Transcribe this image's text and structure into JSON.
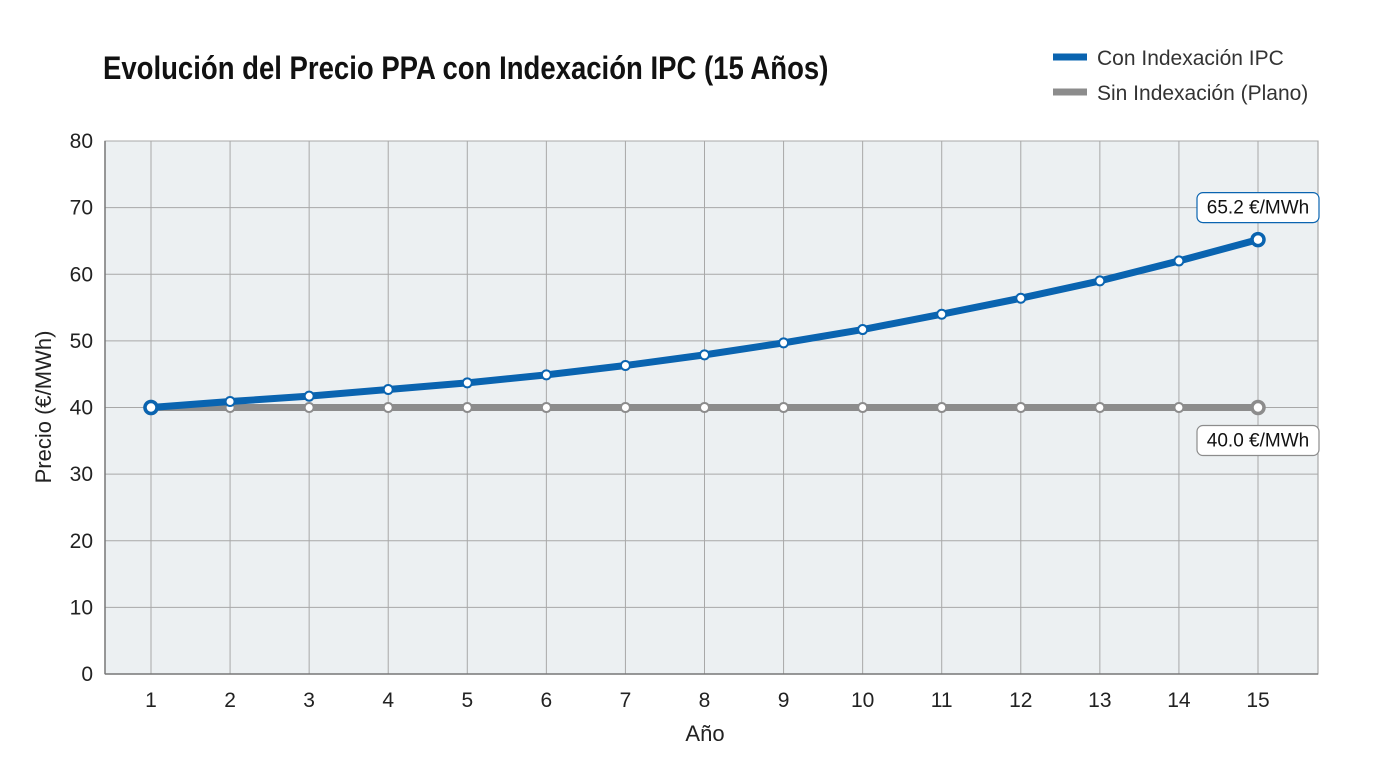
{
  "chart_data": {
    "type": "line",
    "title": "Evolución del Precio PPA con Indexación IPC (15 Años)",
    "xlabel": "Año",
    "ylabel": "Precio (€/MWh)",
    "x": [
      1,
      2,
      3,
      4,
      5,
      6,
      7,
      8,
      9,
      10,
      11,
      12,
      13,
      14,
      15
    ],
    "ylim": [
      0,
      80
    ],
    "yticks": [
      0,
      10,
      20,
      30,
      40,
      50,
      60,
      70,
      80
    ],
    "grid": true,
    "legend_position": "top-right",
    "series": [
      {
        "name": "Con Indexación IPC",
        "color": "#0a64b0",
        "values": [
          40.0,
          40.9,
          41.7,
          42.7,
          43.7,
          44.9,
          46.3,
          47.9,
          49.7,
          51.7,
          54.0,
          56.4,
          59.0,
          62.0,
          65.2
        ],
        "end_label": "65.2 €/MWh"
      },
      {
        "name": "Sin Indexación (Plano)",
        "color": "#8c8c8c",
        "values": [
          40,
          40,
          40,
          40,
          40,
          40,
          40,
          40,
          40,
          40,
          40,
          40,
          40,
          40,
          40
        ],
        "end_label": "40.0 €/MWh"
      }
    ]
  }
}
